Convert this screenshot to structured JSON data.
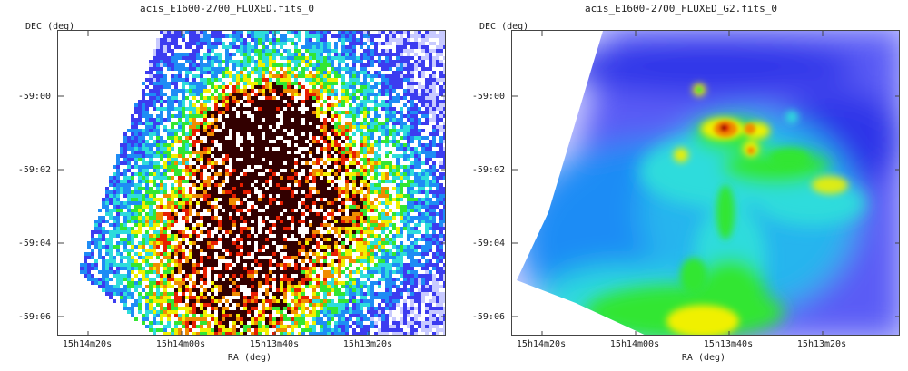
{
  "panels": [
    {
      "title": "acis_E1600-2700_FLUXED.fits_0",
      "ylabel": "DEC (deg)",
      "xlabel": "RA (deg)",
      "yticks": [
        "-59:00",
        "-59:02",
        "-59:04",
        "-59:06"
      ],
      "xticks": [
        "15h14m20s",
        "15h14m00s",
        "15h13m40s",
        "15h13m20s"
      ],
      "style": "raw-counts"
    },
    {
      "title": "acis_E1600-2700_FLUXED_G2.fits_0",
      "ylabel": "DEC (deg)",
      "xlabel": "RA (deg)",
      "yticks": [
        "-59:00",
        "-59:02",
        "-59:04",
        "-59:06"
      ],
      "xticks": [
        "15h14m20s",
        "15h14m00s",
        "15h13m40s",
        "15h13m20s"
      ],
      "style": "gaussian-smoothed"
    }
  ],
  "colormap": [
    "#ffffff",
    "#c8caff",
    "#3c3cf0",
    "#1e8cf5",
    "#2ddcdc",
    "#32e632",
    "#f0f000",
    "#f08c00",
    "#e61e00",
    "#320000"
  ]
}
